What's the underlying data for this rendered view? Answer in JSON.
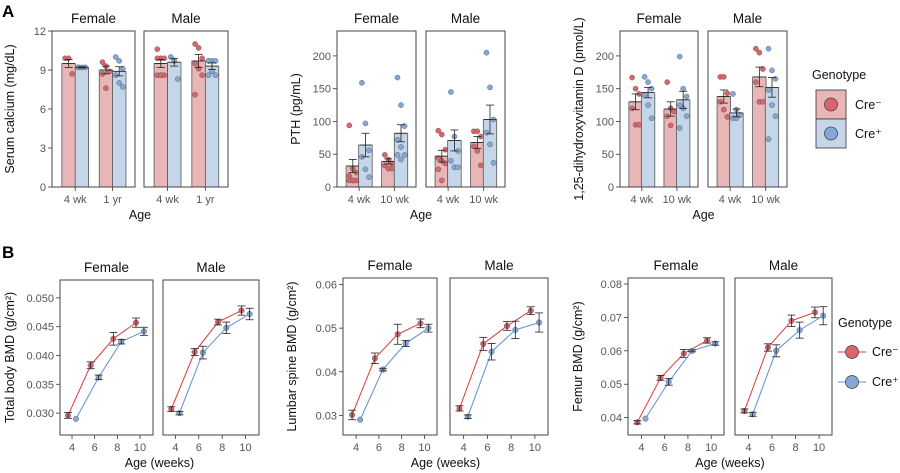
{
  "panels": {
    "a": "A",
    "b": "B"
  },
  "colors": {
    "cre_minus_bar": "#e8b6b6",
    "cre_plus_bar": "#c6d6e9",
    "cre_minus_point": "#d9646c",
    "cre_plus_point": "#85a8d6",
    "cre_minus_line": "#d93a3a",
    "cre_plus_line": "#5d8fd0"
  },
  "legend_a": {
    "title": "Genotype",
    "items": [
      "Cre⁻",
      "Cre⁺"
    ]
  },
  "legend_b": {
    "title": "Genotype",
    "items": [
      "Cre⁻",
      "Cre⁺"
    ]
  },
  "chart_data": [
    {
      "type": "bar",
      "ylabel": "Serum calcium (mg/dL)",
      "xlabel": "Age",
      "facets": [
        "Female",
        "Male"
      ],
      "categories": [
        "4 wk",
        "1 yr"
      ],
      "ylim": [
        0,
        12
      ],
      "yticks": [
        "0",
        "3",
        "6",
        "9",
        "12"
      ],
      "grid": false,
      "series": [
        {
          "name": "Cre⁻",
          "groups": [
            {
              "mean": 9.5,
              "sem": 0.3,
              "points": [
                9.9,
                9.9,
                8.7
              ]
            },
            {
              "mean": 9.0,
              "sem": 0.3,
              "points": [
                9.6,
                9.3,
                8.9,
                8.7,
                7.6
              ]
            },
            {
              "mean": 9.5,
              "sem": 0.3,
              "points": [
                10.6,
                9.9,
                9.9,
                9.9,
                8.6,
                8.6,
                8.6,
                8.6
              ]
            },
            {
              "mean": 9.7,
              "sem": 0.5,
              "points": [
                11.0,
                10.7,
                9.9,
                9.5,
                9.1,
                8.6,
                7.1
              ]
            }
          ]
        },
        {
          "name": "Cre⁺",
          "groups": [
            {
              "mean": 9.2,
              "sem": 0.05,
              "points": [
                9.2,
                9.2,
                9.2,
                9.2
              ]
            },
            {
              "mean": 8.9,
              "sem": 0.35,
              "points": [
                10.0,
                9.7,
                9.1,
                8.6,
                8.0,
                7.7
              ]
            },
            {
              "mean": 9.6,
              "sem": 0.3,
              "points": [
                10.0,
                9.7,
                8.3
              ]
            },
            {
              "mean": 9.3,
              "sem": 0.25,
              "points": [
                9.7,
                9.7,
                9.7,
                9.7,
                8.9,
                8.6,
                8.6
              ]
            }
          ]
        }
      ]
    },
    {
      "type": "bar",
      "ylabel": "PTH (pg/mL)",
      "xlabel": "Age",
      "facets": [
        "Female",
        "Male"
      ],
      "categories": [
        "4 wk",
        "10 wk"
      ],
      "ylim": [
        0,
        238
      ],
      "yticks": [
        "0",
        "50",
        "100",
        "150",
        "200"
      ],
      "grid": false,
      "series": [
        {
          "name": "Cre⁻",
          "groups": [
            {
              "mean": 32,
              "sem": 10,
              "points": [
                94,
                28,
                22,
                17,
                10,
                10,
                10,
                10
              ]
            },
            {
              "mean": 39,
              "sem": 4,
              "points": [
                49,
                42,
                36,
                33,
                28,
                28
              ]
            },
            {
              "mean": 47,
              "sem": 9,
              "points": [
                86,
                80,
                57,
                44,
                40,
                36,
                27,
                10
              ]
            },
            {
              "mean": 68,
              "sem": 9,
              "points": [
                85,
                85,
                77,
                62,
                55,
                33
              ]
            }
          ]
        },
        {
          "name": "Cre⁺",
          "groups": [
            {
              "mean": 64,
              "sem": 18,
              "points": [
                159,
                97,
                56,
                46,
                27,
                15
              ]
            },
            {
              "mean": 82,
              "sem": 13,
              "points": [
                167,
                125,
                93,
                72,
                61,
                49,
                49,
                42
              ]
            },
            {
              "mean": 71,
              "sem": 16,
              "points": [
                145,
                77,
                55,
                40,
                30,
                30
              ]
            },
            {
              "mean": 103,
              "sem": 22,
              "points": [
                205,
                152,
                103,
                83,
                65,
                37
              ]
            }
          ]
        }
      ]
    },
    {
      "type": "bar",
      "ylabel": "1,25-dihydroxyvitamin D (pmol/L)",
      "xlabel": "Age",
      "facets": [
        "Female",
        "Male"
      ],
      "categories": [
        "4 wk",
        "10 wk"
      ],
      "ylim": [
        0,
        238
      ],
      "yticks": [
        "0",
        "50",
        "100",
        "150",
        "200"
      ],
      "grid": false,
      "series": [
        {
          "name": "Cre⁻",
          "groups": [
            {
              "mean": 130,
              "sem": 12,
              "points": [
                167,
                150,
                142,
                120,
                95,
                95
              ]
            },
            {
              "mean": 119,
              "sem": 11,
              "points": [
                160,
                120,
                115,
                108,
                94
              ]
            },
            {
              "mean": 138,
              "sem": 10,
              "points": [
                168,
                168,
                143,
                130,
                118,
                107
              ]
            },
            {
              "mean": 168,
              "sem": 15,
              "points": [
                211,
                205,
                180,
                160,
                130,
                130
              ]
            }
          ]
        },
        {
          "name": "Cre⁺",
          "groups": [
            {
              "mean": 144,
              "sem": 8,
              "points": [
                168,
                160,
                150,
                140,
                125,
                105
              ]
            },
            {
              "mean": 133,
              "sem": 13,
              "points": [
                199,
                150,
                138,
                125,
                120,
                108,
                90
              ]
            },
            {
              "mean": 113,
              "sem": 6,
              "points": [
                142,
                118,
                110,
                105,
                105
              ]
            },
            {
              "mean": 152,
              "sem": 15,
              "points": [
                211,
                178,
                165,
                148,
                125,
                108,
                73
              ]
            }
          ]
        }
      ]
    },
    {
      "type": "line",
      "ylabel": "Total body BMD (g/cm²)",
      "xlabel": "Age (weeks)",
      "facets": [
        "Female",
        "Male"
      ],
      "x": [
        4,
        6,
        8,
        10
      ],
      "xticks": [
        "4",
        "6",
        "8",
        "10"
      ],
      "ylim": [
        0.0262,
        0.0531
      ],
      "yticks": [
        "0.030",
        "0.035",
        "0.040",
        "0.045",
        "0.050"
      ],
      "grid": false,
      "series": [
        {
          "name": "Cre⁻",
          "facets": [
            {
              "mean": [
                0.0296,
                0.0383,
                0.0429,
                0.0457
              ],
              "sem": [
                0.0005,
                0.0006,
                0.0011,
                0.0008
              ]
            },
            {
              "mean": [
                0.0307,
                0.0406,
                0.0458,
                0.0478
              ],
              "sem": [
                0.0004,
                0.0006,
                0.0005,
                0.0008
              ]
            }
          ]
        },
        {
          "name": "Cre⁺",
          "facets": [
            {
              "mean": [
                0.029,
                0.0362,
                0.0424,
                0.0442
              ],
              "sem": [
                0,
                0.0004,
                0.0004,
                0.0007
              ]
            },
            {
              "mean": [
                0.03,
                0.0405,
                0.0448,
                0.0472
              ],
              "sem": [
                0.0003,
                0.0011,
                0.001,
                0.001
              ]
            }
          ]
        }
      ]
    },
    {
      "type": "line",
      "ylabel": "Lumbar spine BMD (g/cm²)",
      "xlabel": "Age (weeks)",
      "facets": [
        "Female",
        "Male"
      ],
      "x": [
        4,
        6,
        8,
        10
      ],
      "xticks": [
        "4",
        "6",
        "8",
        "10"
      ],
      "ylim": [
        0.0255,
        0.0615
      ],
      "yticks": [
        "0.03",
        "0.04",
        "0.05",
        "0.06"
      ],
      "grid": false,
      "series": [
        {
          "name": "Cre⁻",
          "facets": [
            {
              "mean": [
                0.0301,
                0.0431,
                0.0486,
                0.0511
              ],
              "sem": [
                0.0011,
                0.0012,
                0.0023,
                0.001
              ]
            },
            {
              "mean": [
                0.0316,
                0.0464,
                0.0505,
                0.054
              ],
              "sem": [
                0.0006,
                0.0015,
                0.001,
                0.0009
              ]
            }
          ]
        },
        {
          "name": "Cre⁺",
          "facets": [
            {
              "mean": [
                0.029,
                0.0405,
                0.0465,
                0.05
              ],
              "sem": [
                0,
                0.0003,
                0.0007,
                0.0009
              ]
            },
            {
              "mean": [
                0.0297,
                0.0446,
                0.0496,
                0.0513
              ],
              "sem": [
                0.0004,
                0.0019,
                0.002,
                0.0022
              ]
            }
          ]
        }
      ]
    },
    {
      "type": "line",
      "ylabel": "Femur BMD (g/cm²)",
      "xlabel": "Age (weeks)",
      "facets": [
        "Female",
        "Male"
      ],
      "x": [
        4,
        6,
        8,
        10
      ],
      "xticks": [
        "4",
        "6",
        "8",
        "10"
      ],
      "ylim": [
        0.0348,
        0.0818
      ],
      "yticks": [
        "0.04",
        "0.05",
        "0.06",
        "0.07",
        "0.08"
      ],
      "grid": false,
      "series": [
        {
          "name": "Cre⁻",
          "facets": [
            {
              "mean": [
                0.0386,
                0.0519,
                0.0592,
                0.0631
              ],
              "sem": [
                0.0005,
                0.0007,
                0.0012,
                0.0008
              ]
            },
            {
              "mean": [
                0.042,
                0.061,
                0.069,
                0.0715
              ],
              "sem": [
                0.0006,
                0.0011,
                0.0017,
                0.0016
              ]
            }
          ]
        },
        {
          "name": "Cre⁺",
          "facets": [
            {
              "mean": [
                0.0397,
                0.0507,
                0.06,
                0.0622
              ],
              "sem": [
                0,
                0.001,
                0.0003,
                0.0005
              ]
            },
            {
              "mean": [
                0.041,
                0.06,
                0.0662,
                0.0705
              ],
              "sem": [
                0.0006,
                0.0018,
                0.0024,
                0.0027
              ]
            }
          ]
        }
      ]
    }
  ]
}
